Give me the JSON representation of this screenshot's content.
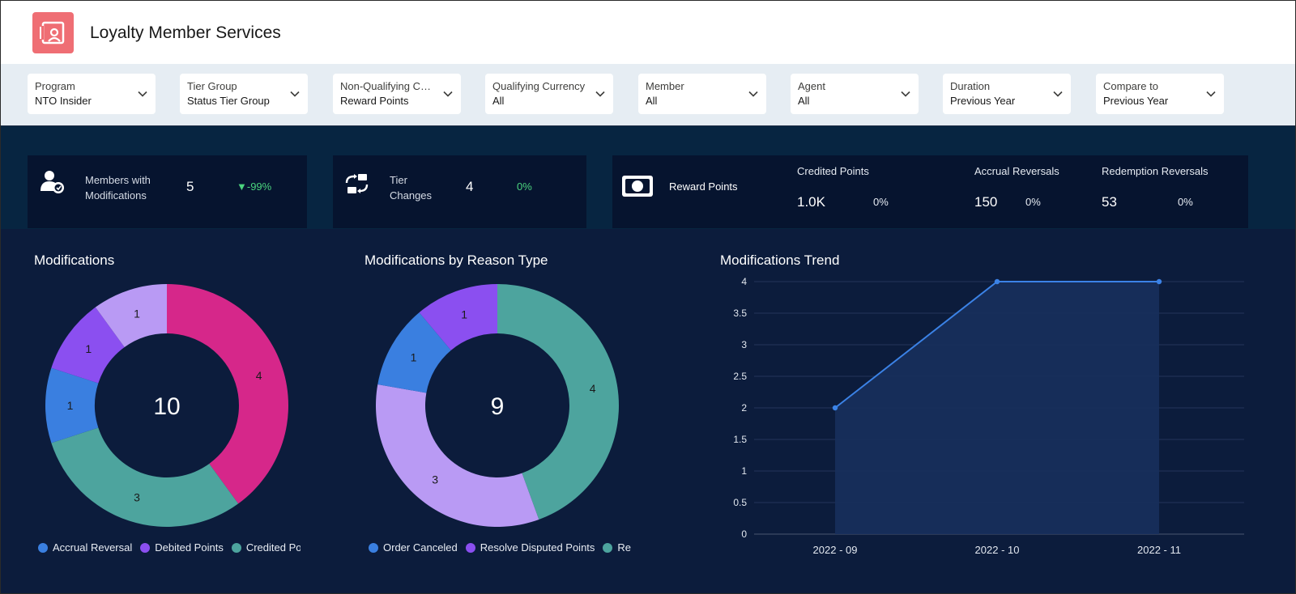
{
  "header": {
    "title": "Loyalty Member Services",
    "logo_icon": "contact-card-icon",
    "logo_color": "#ef6e74"
  },
  "filters": [
    {
      "label": "Program",
      "value": "NTO Insider"
    },
    {
      "label": "Tier Group",
      "value": "Status Tier Group"
    },
    {
      "label": "Non-Qualifying Curre...",
      "value": "Reward Points"
    },
    {
      "label": "Qualifying Currency",
      "value": "All"
    },
    {
      "label": "Member",
      "value": "All"
    },
    {
      "label": "Agent",
      "value": "All"
    },
    {
      "label": "Duration",
      "value": "Previous Year"
    },
    {
      "label": "Compare to",
      "value": "Previous Year"
    }
  ],
  "kpis": {
    "members": {
      "label_line1": "Members with",
      "label_line2": "Modifications",
      "value": "5",
      "change": "▼-99%",
      "icon": "user-settings-icon"
    },
    "tiers": {
      "label_line1": "Tier",
      "label_line2": "Changes",
      "value": "4",
      "change": "0%",
      "icon": "swap-icon"
    },
    "points": {
      "label": "Reward Points",
      "icon": "money-icon",
      "metrics": [
        {
          "label": "Credited Points",
          "value": "1.0K",
          "change": "0%"
        },
        {
          "label": "Accrual Reversals",
          "value": "150",
          "change": "0%"
        },
        {
          "label": "Redemption Reversals",
          "value": "53",
          "change": "0%"
        }
      ]
    }
  },
  "panels": {
    "modifications": {
      "title": "Modifications",
      "center": "10",
      "legend": [
        "Accrual Reversal",
        "Debited Points",
        "Credited Poi"
      ]
    },
    "by_reason": {
      "title": "Modifications by Reason Type",
      "center": "9",
      "legend": [
        "Order Canceled",
        "Resolve Disputed Points",
        "Res"
      ]
    },
    "trend": {
      "title": "Modifications Trend"
    }
  },
  "chart_data": [
    {
      "type": "pie",
      "title": "Modifications",
      "total": 10,
      "slices": [
        {
          "label": "Credited Points",
          "value": 4,
          "color": "#d6278a"
        },
        {
          "label": "",
          "value": 3,
          "color": "#4da49e"
        },
        {
          "label": "",
          "value": 1,
          "color": "#3a7fe0"
        },
        {
          "label": "Debited Points",
          "value": 1,
          "color": "#8b4ff0"
        },
        {
          "label": "",
          "value": 1,
          "color": "#b99af4"
        }
      ],
      "legend": [
        {
          "name": "Accrual Reversal",
          "color": "#3a7fe0"
        },
        {
          "name": "Debited Points",
          "color": "#8b4ff0"
        },
        {
          "name": "Credited Poi",
          "color": "#4da49e"
        }
      ]
    },
    {
      "type": "pie",
      "title": "Modifications by Reason Type",
      "total": 9,
      "slices": [
        {
          "label": "",
          "value": 4,
          "color": "#4da49e"
        },
        {
          "label": "Resolve Disputed Points",
          "value": 3,
          "color": "#b99af4"
        },
        {
          "label": "Order Canceled",
          "value": 1,
          "color": "#3a7fe0"
        },
        {
          "label": "",
          "value": 1,
          "color": "#8b4ff0"
        }
      ],
      "legend": [
        {
          "name": "Order Canceled",
          "color": "#3a7fe0"
        },
        {
          "name": "Resolve Disputed Points",
          "color": "#8b4ff0"
        },
        {
          "name": "Res",
          "color": "#4da49e"
        }
      ]
    },
    {
      "type": "area",
      "title": "Modifications Trend",
      "x": [
        "2022 - 09",
        "2022 - 10",
        "2022 - 11"
      ],
      "values": [
        2,
        4,
        4
      ],
      "ylim": [
        0,
        4
      ],
      "yticks": [
        "0",
        "0.5",
        "1",
        "1.5",
        "2",
        "2.5",
        "3",
        "3.5",
        "4"
      ],
      "grid": true,
      "line_color": "#3b82e6",
      "fill_color": "#17305c"
    }
  ]
}
